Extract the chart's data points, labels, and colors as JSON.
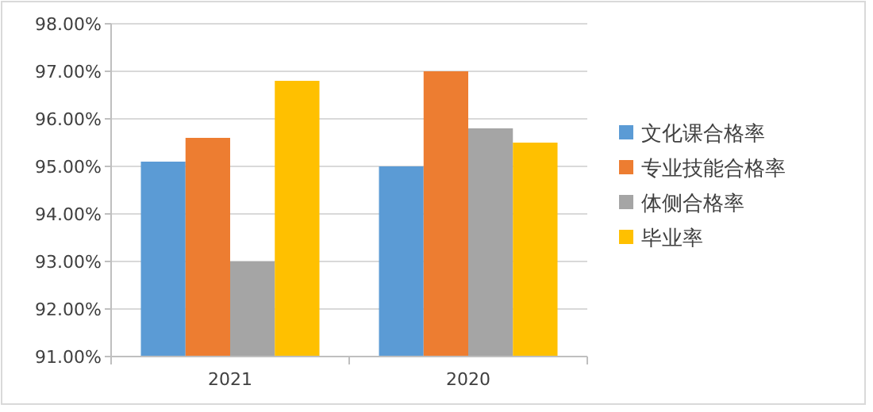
{
  "chart_data": {
    "type": "bar",
    "categories": [
      "2021",
      "2020"
    ],
    "series": [
      {
        "name": "文化课合格率",
        "color": "#5b9bd5",
        "values": [
          95.1,
          95.0
        ]
      },
      {
        "name": "专业技能合格率",
        "color": "#ed7d31",
        "values": [
          95.6,
          97.0
        ]
      },
      {
        "name": "体侧合格率",
        "color": "#a5a5a5",
        "values": [
          93.0,
          95.8
        ]
      },
      {
        "name": "毕业率",
        "color": "#ffc000",
        "values": [
          96.8,
          95.5
        ]
      }
    ],
    "ylim": [
      91,
      98
    ],
    "yticks": [
      {
        "value": 91,
        "label": "91.00%"
      },
      {
        "value": 92,
        "label": "92.00%"
      },
      {
        "value": 93,
        "label": "93.00%"
      },
      {
        "value": 94,
        "label": "94.00%"
      },
      {
        "value": 95,
        "label": "95.00%"
      },
      {
        "value": 96,
        "label": "96.00%"
      },
      {
        "value": 97,
        "label": "97.00%"
      },
      {
        "value": 98,
        "label": "98.00%"
      }
    ],
    "grid": "y",
    "legend": "right"
  }
}
